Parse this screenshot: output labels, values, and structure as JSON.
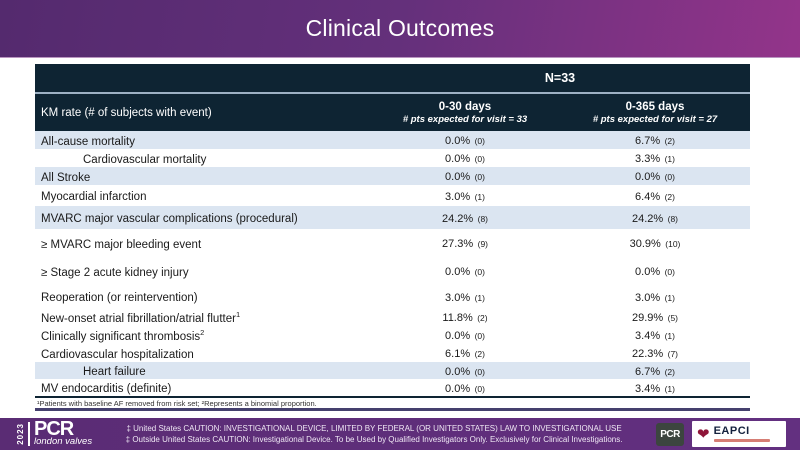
{
  "title": "Clinical Outcomes",
  "colors": {
    "title_gradient_left": "#542a6e",
    "title_gradient_right": "#93348a",
    "table_header_bg": "#0e2433",
    "row_shaded_bg": "#dbe5f1",
    "footer_bg": "#5a2c74",
    "eapci_heart_red": "#8e1538"
  },
  "table": {
    "n_label": "N=33",
    "km_label": "KM rate (# of subjects with event)",
    "columns": [
      {
        "title": "0-30 days",
        "subtitle": "# pts expected for visit = 33"
      },
      {
        "title": "0-365 days",
        "subtitle": "# pts expected for visit = 27"
      }
    ],
    "rows": [
      {
        "label": "All-cause mortality",
        "sup": "",
        "d30_pct": "0.0%",
        "d30_n": "(0)",
        "d365_pct": "6.7%",
        "d365_n": "(2)"
      },
      {
        "label": "Cardiovascular mortality",
        "sup": "",
        "d30_pct": "0.0%",
        "d30_n": "(0)",
        "d365_pct": "3.3%",
        "d365_n": "(1)"
      },
      {
        "label": "All Stroke",
        "sup": "",
        "d30_pct": "0.0%",
        "d30_n": "(0)",
        "d365_pct": "0.0%",
        "d365_n": "(0)"
      },
      {
        "label": "Myocardial infarction",
        "sup": "",
        "d30_pct": "3.0%",
        "d30_n": "(1)",
        "d365_pct": "6.4%",
        "d365_n": "(2)"
      },
      {
        "label": "MVARC major vascular complications (procedural)",
        "sup": "",
        "d30_pct": "24.2%",
        "d30_n": "(8)",
        "d365_pct": "24.2%",
        "d365_n": "(8)"
      },
      {
        "label": "≥ MVARC major bleeding event",
        "sup": "",
        "d30_pct": "27.3%",
        "d30_n": "(9)",
        "d365_pct": "30.9%",
        "d365_n": "(10)"
      },
      {
        "label": "≥ Stage 2 acute kidney injury",
        "sup": "",
        "d30_pct": "0.0%",
        "d30_n": "(0)",
        "d365_pct": "0.0%",
        "d365_n": "(0)"
      },
      {
        "label": "Reoperation (or reintervention)",
        "sup": "",
        "d30_pct": "3.0%",
        "d30_n": "(1)",
        "d365_pct": "3.0%",
        "d365_n": "(1)"
      },
      {
        "label": "New-onset atrial fibrillation/atrial flutter",
        "sup": "1",
        "d30_pct": "11.8%",
        "d30_n": "(2)",
        "d365_pct": "29.9%",
        "d365_n": "(5)"
      },
      {
        "label": "Clinically significant thrombosis",
        "sup": "2",
        "d30_pct": "0.0%",
        "d30_n": "(0)",
        "d365_pct": "3.4%",
        "d365_n": "(1)"
      },
      {
        "label": "Cardiovascular hospitalization",
        "sup": "",
        "d30_pct": "6.1%",
        "d30_n": "(2)",
        "d365_pct": "22.3%",
        "d365_n": "(7)"
      },
      {
        "label": "Heart failure",
        "sup": "",
        "d30_pct": "0.0%",
        "d30_n": "(0)",
        "d365_pct": "6.7%",
        "d365_n": "(2)"
      },
      {
        "label": "MV endocarditis (definite)",
        "sup": "",
        "d30_pct": "0.0%",
        "d30_n": "(0)",
        "d365_pct": "3.4%",
        "d365_n": "(1)"
      }
    ],
    "footnote": "¹Patients with baseline AF removed from risk set; ²Represents a binomial proportion."
  },
  "footer": {
    "year": "2023",
    "brand": "PCR",
    "brand_subtitle": "london valves",
    "caution_line1": "‡ United States CAUTION: INVESTIGATIONAL DEVICE, LIMITED BY FEDERAL (OR UNITED STATES) LAW TO INVESTIGATIONAL USE",
    "caution_line2": "‡ Outside United States CAUTION: Investigational Device. To be Used by Qualified Investigators Only. Exclusively for Clinical Investigations.",
    "pcr_badge": "PCR",
    "eapci_label": "EAPCI"
  }
}
